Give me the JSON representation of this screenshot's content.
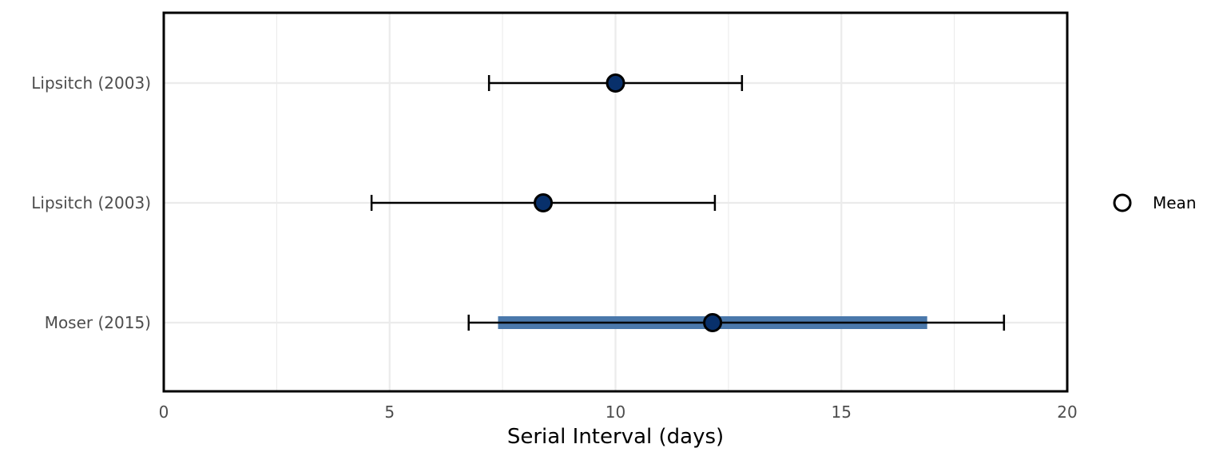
{
  "chart_data": {
    "type": "forest",
    "xlabel": "Serial Interval (days)",
    "ylabel": "",
    "xlim": [
      0,
      20
    ],
    "xticks": [
      0,
      5,
      10,
      15,
      20
    ],
    "grid": true,
    "legend": {
      "position": "right",
      "entries": [
        {
          "label": "Mean",
          "marker": "open-circle"
        }
      ]
    },
    "rows": [
      {
        "label": "Lipsitch (2003)",
        "mean": 10.0,
        "ci_low": 7.2,
        "ci_high": 12.8
      },
      {
        "label": "Lipsitch (2003)",
        "mean": 8.4,
        "ci_low": 4.6,
        "ci_high": 12.2
      },
      {
        "label": "Moser (2015)",
        "mean": 12.15,
        "ci_low": 6.75,
        "ci_high": 18.6,
        "range_low": 7.4,
        "range_high": 16.9
      }
    ],
    "colors": {
      "point_fill": "#08306b",
      "range_bar": "#4a78ab",
      "errorbar": "#000000"
    }
  }
}
